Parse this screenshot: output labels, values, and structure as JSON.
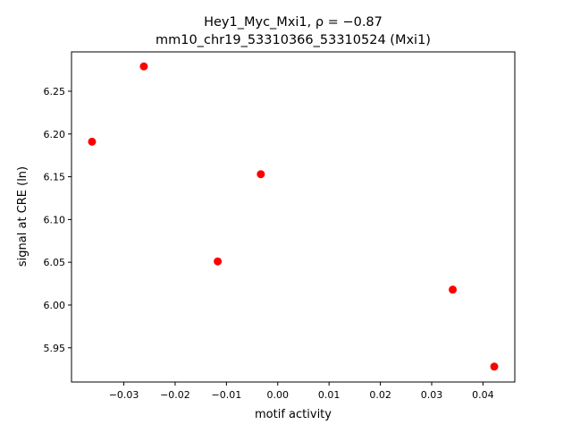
{
  "chart_data": {
    "type": "scatter",
    "title_line1": "Hey1_Myc_Mxi1, ρ = −0.87",
    "title_line2": "mm10_chr19_53310366_53310524 (Mxi1)",
    "xlabel": "motif activity",
    "ylabel": "signal at CRE (ln)",
    "xlim": [
      -0.0402,
      0.0462
    ],
    "ylim": [
      5.91,
      6.296
    ],
    "xticks": [
      -0.03,
      -0.02,
      -0.01,
      0.0,
      0.01,
      0.02,
      0.03,
      0.04
    ],
    "xtick_labels": [
      "−0.03",
      "−0.02",
      "−0.01",
      "0.00",
      "0.01",
      "0.02",
      "0.03",
      "0.04"
    ],
    "yticks": [
      5.95,
      6.0,
      6.05,
      6.1,
      6.15,
      6.2,
      6.25
    ],
    "ytick_labels": [
      "5.95",
      "6.00",
      "6.05",
      "6.10",
      "6.15",
      "6.20",
      "6.25"
    ],
    "grid": false,
    "marker_color": "#ff0000",
    "points": [
      {
        "x": -0.0362,
        "y": 6.191
      },
      {
        "x": -0.0261,
        "y": 6.279
      },
      {
        "x": -0.0033,
        "y": 6.153
      },
      {
        "x": -0.0117,
        "y": 6.051
      },
      {
        "x": 0.0341,
        "y": 6.018
      },
      {
        "x": 0.0422,
        "y": 5.928
      }
    ]
  }
}
